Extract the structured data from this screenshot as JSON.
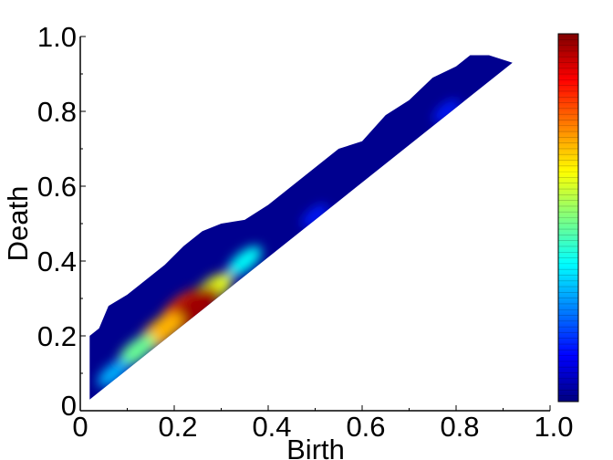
{
  "chart_data": {
    "type": "heatmap",
    "xlabel": "Birth",
    "ylabel": "Death",
    "xlim": [
      0,
      1.0
    ],
    "ylim": [
      0,
      1.0
    ],
    "x_tick_labels": [
      "0",
      "0.2",
      "0.4",
      "0.6",
      "0.8",
      "1.0"
    ],
    "x_tick_values": [
      0,
      0.2,
      0.4,
      0.6,
      0.8,
      1.0
    ],
    "y_tick_labels": [
      "0",
      "0.2",
      "0.4",
      "0.6",
      "0.8",
      "1.0"
    ],
    "y_tick_values": [
      0,
      0.2,
      0.4,
      0.6,
      0.8,
      1.0
    ],
    "colormap": "jet",
    "colorbar_ticks": false,
    "region_upper_boundary": [
      [
        0.02,
        0.14
      ],
      [
        0.02,
        0.2
      ],
      [
        0.04,
        0.22
      ],
      [
        0.06,
        0.28
      ],
      [
        0.1,
        0.31
      ],
      [
        0.14,
        0.35
      ],
      [
        0.18,
        0.39
      ],
      [
        0.22,
        0.44
      ],
      [
        0.26,
        0.48
      ],
      [
        0.3,
        0.5
      ],
      [
        0.35,
        0.51
      ],
      [
        0.4,
        0.55
      ],
      [
        0.45,
        0.6
      ],
      [
        0.5,
        0.65
      ],
      [
        0.55,
        0.7
      ],
      [
        0.6,
        0.72
      ],
      [
        0.65,
        0.79
      ],
      [
        0.7,
        0.83
      ],
      [
        0.75,
        0.89
      ],
      [
        0.8,
        0.92
      ],
      [
        0.83,
        0.95
      ],
      [
        0.87,
        0.95
      ],
      [
        0.92,
        0.93
      ]
    ],
    "diagonal": [
      [
        0.02,
        0.03
      ],
      [
        0.92,
        0.93
      ]
    ],
    "hotspots": [
      {
        "birth": 0.35,
        "death": 0.4,
        "intensity": 0.38
      },
      {
        "birth": 0.28,
        "death": 0.32,
        "intensity": 0.6
      },
      {
        "birth": 0.22,
        "death": 0.27,
        "intensity": 0.82
      },
      {
        "birth": 0.24,
        "death": 0.27,
        "intensity": 0.97
      },
      {
        "birth": 0.17,
        "death": 0.21,
        "intensity": 0.7
      },
      {
        "birth": 0.12,
        "death": 0.16,
        "intensity": 0.48
      },
      {
        "birth": 0.07,
        "death": 0.1,
        "intensity": 0.3
      },
      {
        "birth": 0.5,
        "death": 0.52,
        "intensity": 0.15
      },
      {
        "birth": 0.78,
        "death": 0.8,
        "intensity": 0.15
      }
    ]
  },
  "colors": {
    "background_density": "#00008f",
    "axis": "#000000"
  }
}
